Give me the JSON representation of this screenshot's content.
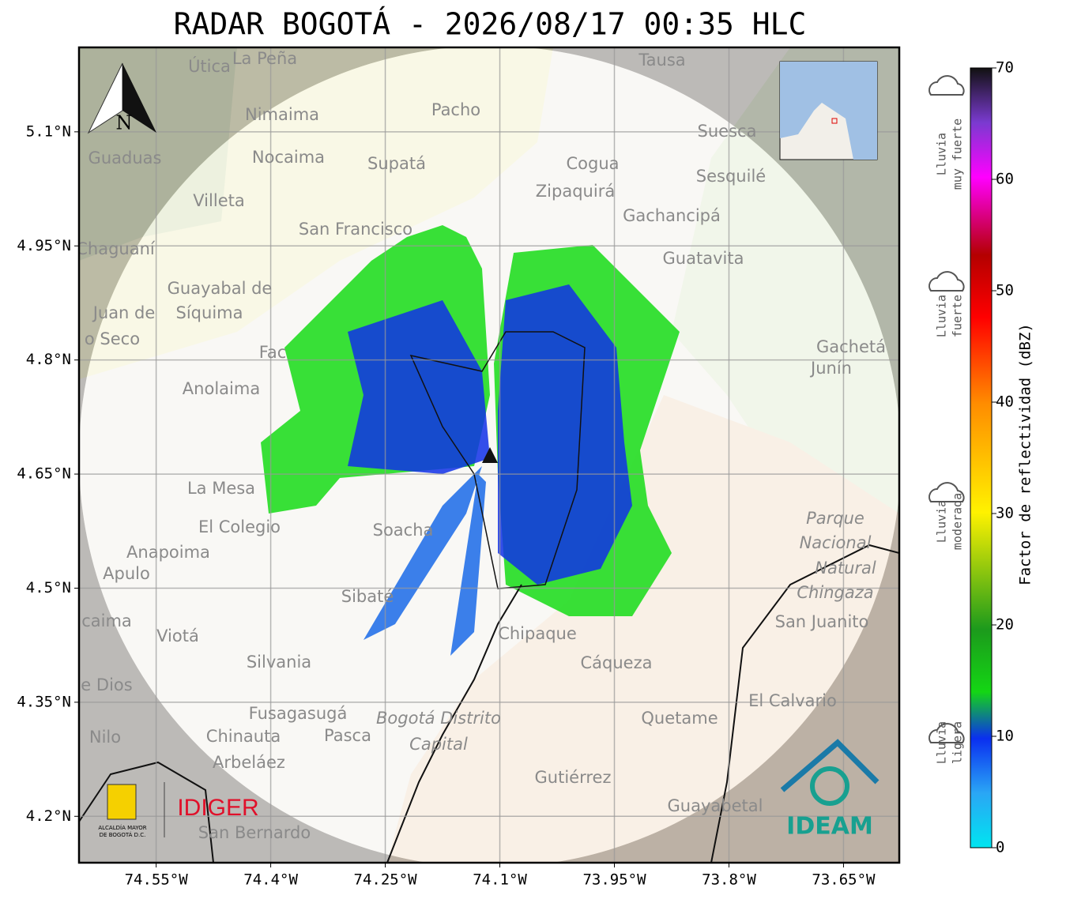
{
  "title": "RADAR BOGOTÁ - 2026/08/17 00:35 HLC",
  "map": {
    "xlim": [
      -74.651,
      -73.577
    ],
    "ylim": [
      4.139,
      5.211
    ],
    "xticks": [
      {
        "value": -74.55,
        "label": "74.55°W"
      },
      {
        "value": -74.4,
        "label": "74.4°W"
      },
      {
        "value": -74.25,
        "label": "74.25°W"
      },
      {
        "value": -74.1,
        "label": "74.1°W"
      },
      {
        "value": -73.95,
        "label": "73.95°W"
      },
      {
        "value": -73.8,
        "label": "73.8°W"
      },
      {
        "value": -73.65,
        "label": "73.65°W"
      }
    ],
    "yticks": [
      {
        "value": 5.1,
        "label": "5.1°N"
      },
      {
        "value": 4.95,
        "label": "4.95°N"
      },
      {
        "value": 4.8,
        "label": "4.8°N"
      },
      {
        "value": 4.65,
        "label": "4.65°N"
      },
      {
        "value": 4.5,
        "label": "4.5°N"
      },
      {
        "value": 4.35,
        "label": "4.35°N"
      },
      {
        "value": 4.2,
        "label": "4.2°N"
      }
    ],
    "grid": true,
    "north": "N",
    "places": [
      "Útica",
      "La Peña",
      "Tausa",
      "Pacho",
      "Nimaima",
      "Guaduas",
      "Nocaima",
      "Supatá",
      "Cogua",
      "Suesca",
      "Sesquilé",
      "Zipaquirá",
      "Villeta",
      "Gachancipá",
      "San Francisco",
      "Chaguaní",
      "Guatavita",
      "Guayabal de",
      "Síquima",
      "Juan de",
      "o Seco",
      "Gachetá",
      "Junín",
      "Anolaima",
      "La Mesa",
      "El Colegio",
      "Anapoima",
      "Apulo",
      "Parque",
      "Nacional",
      "Natural",
      "Chingaza",
      "San Juanito",
      "Soacha",
      "Sibaté",
      "Chipaque",
      "Viotá",
      "Silvania",
      "Cáqueza",
      "El Calvario",
      "Fusagasugá",
      "Quetame",
      "Bogotá Distrito",
      "Capital",
      "Chinauta",
      "Pasca",
      "Nilo",
      "Arbeláez",
      "Gutiérrez",
      "Guayabetal",
      "San Bernardo",
      "caima",
      "e Dios",
      "Fac"
    ],
    "logos": {
      "idiger": "IDIGER",
      "ideam": "IDEAM",
      "alcaldia": [
        "ALCALDÍA MAYOR",
        "DE BOGOTÁ D.C."
      ]
    }
  },
  "colorbar": {
    "label": "Factor de reflectividad (dBZ)",
    "clim": [
      0,
      70
    ],
    "ticks": [
      0,
      10,
      20,
      30,
      40,
      50,
      60,
      70
    ],
    "levels": [
      [
        "Lluvia",
        "muy fuerte"
      ],
      [
        "Lluvia",
        "fuerte"
      ],
      [
        "Lluvia",
        "moderada"
      ],
      [
        "Lluvia",
        "ligera"
      ]
    ]
  }
}
